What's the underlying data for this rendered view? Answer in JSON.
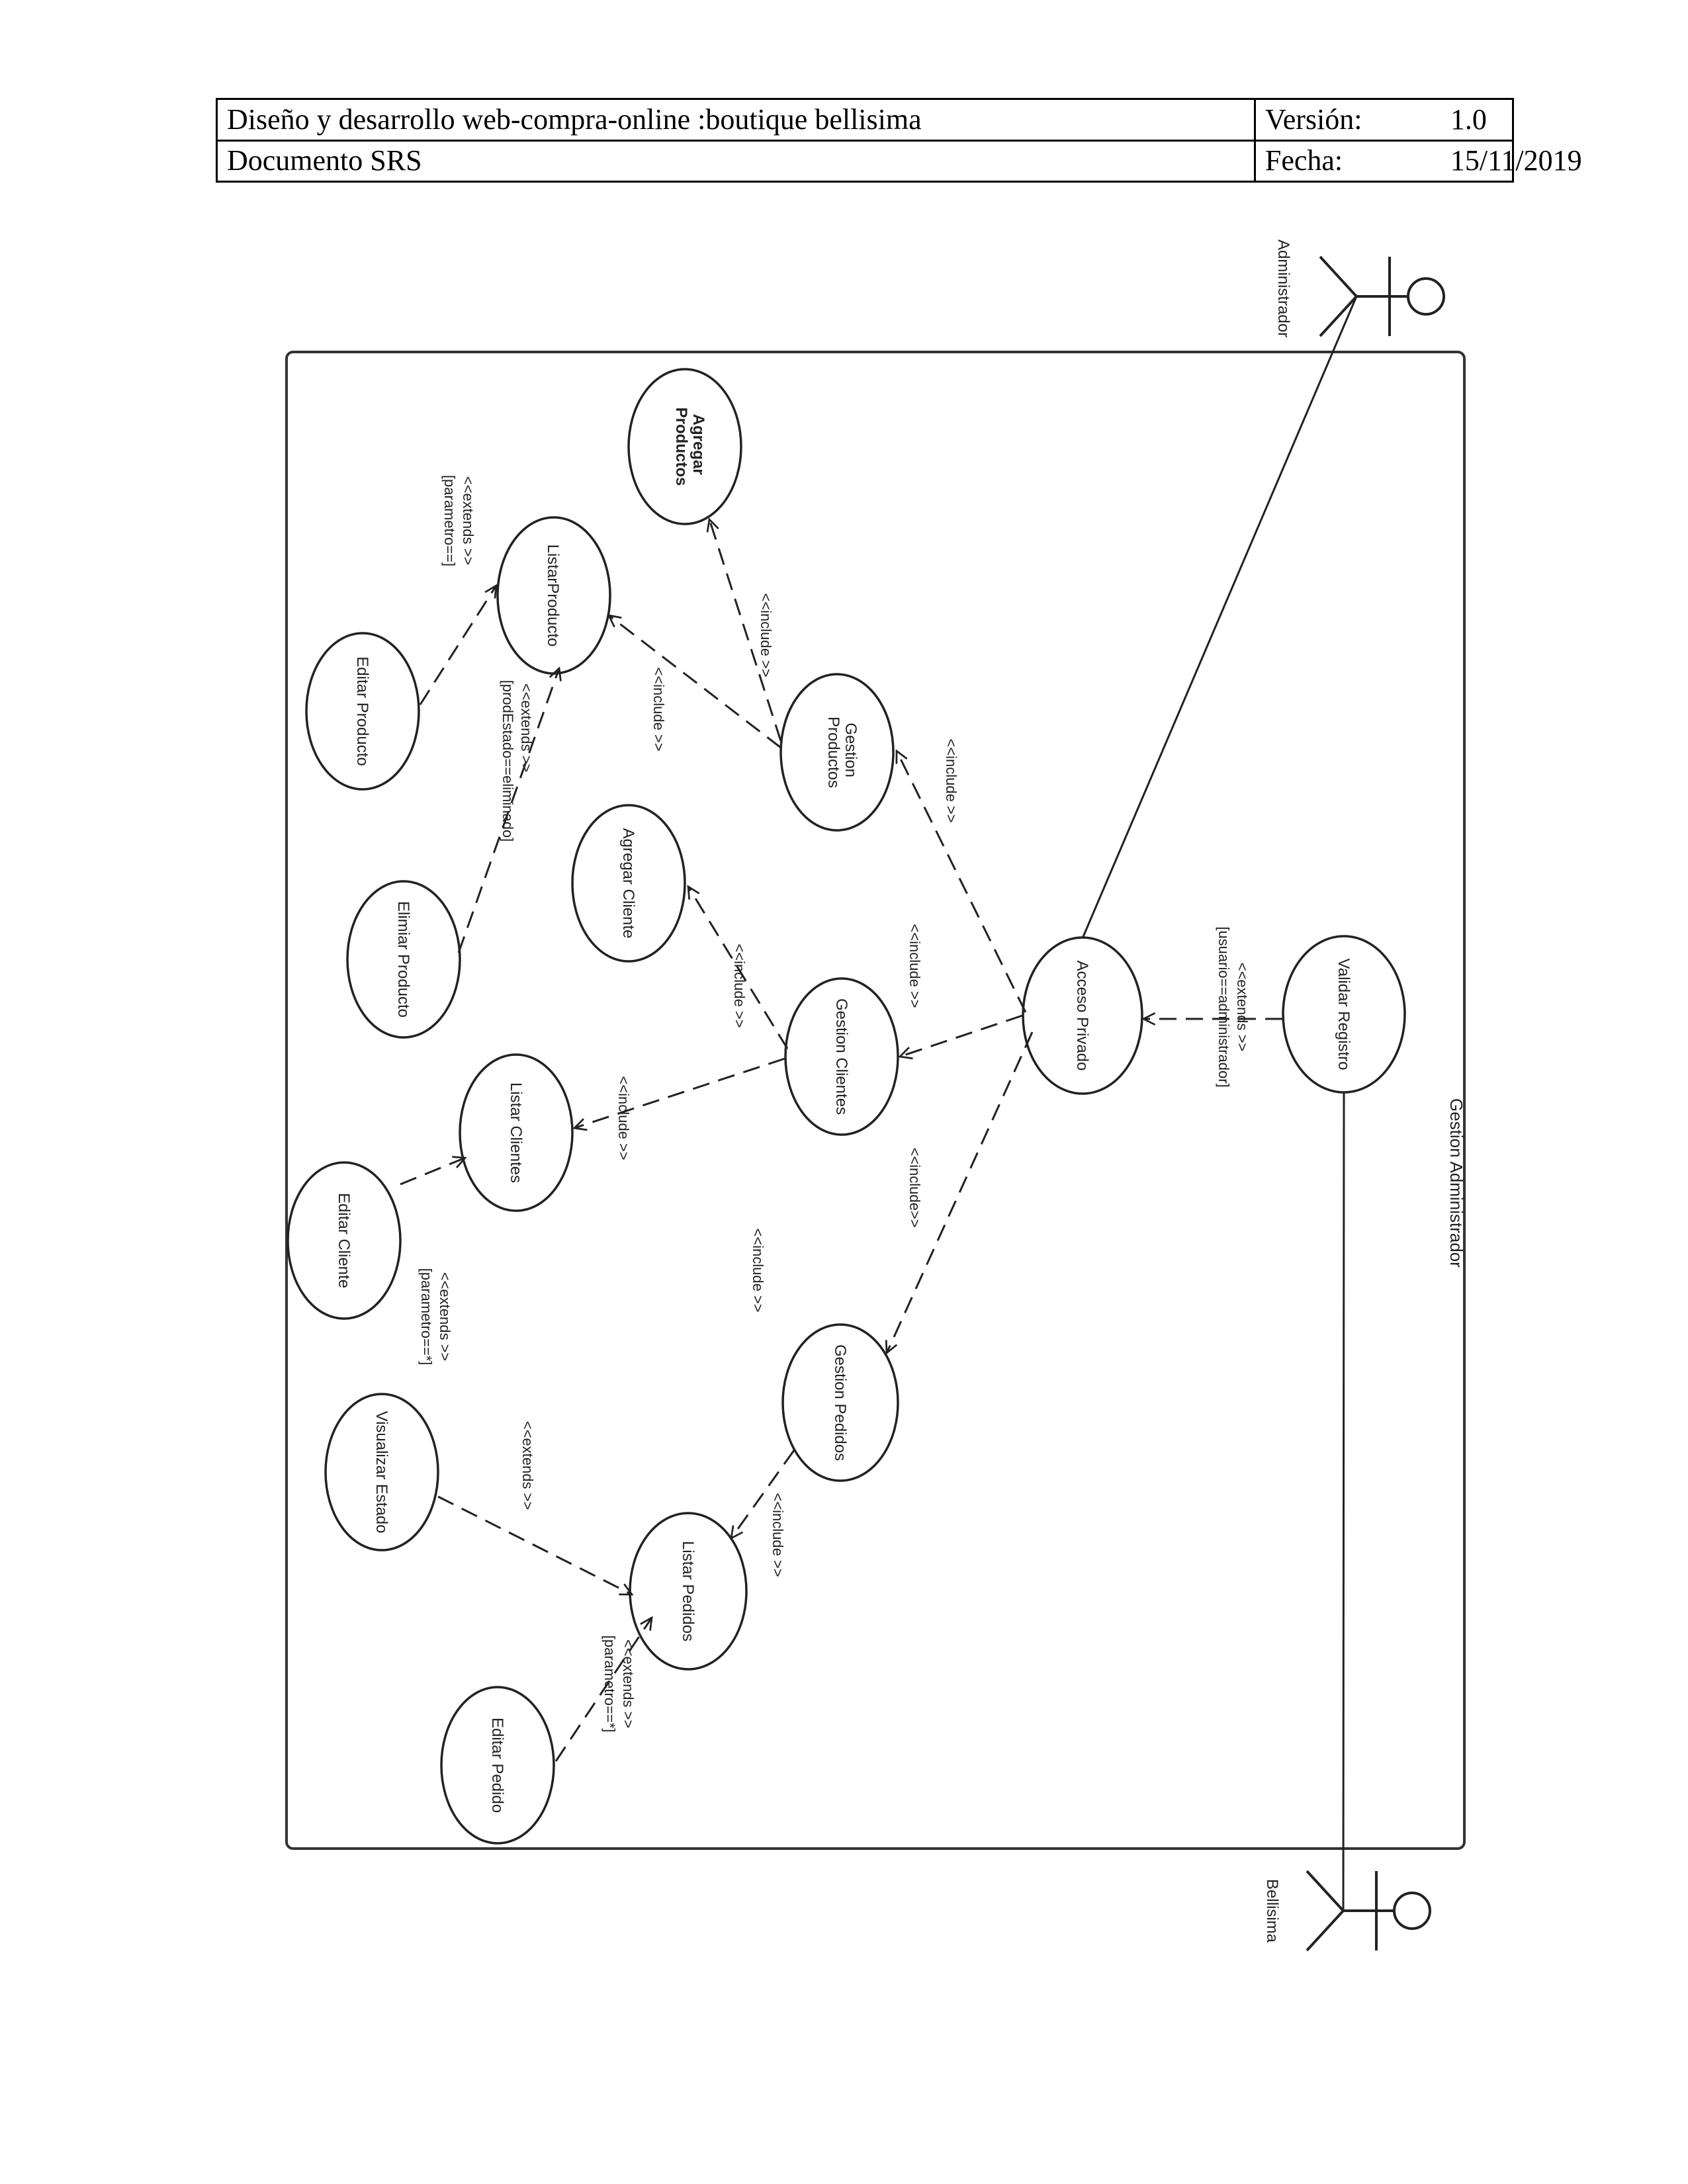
{
  "header": {
    "title": "Diseño y desarrollo web-compra-online :boutique bellisima",
    "subtitle": "Documento SRS",
    "version_label": "Versión:",
    "version_value": "1.0",
    "date_label": "Fecha:",
    "date_value": "15/11/2019"
  },
  "diagram": {
    "system_name": "Gestion Administrador",
    "actors": {
      "admin": "Administrador",
      "user": "Bellisima"
    },
    "use_cases": {
      "agregar_productos": [
        "Agregar",
        "Productos"
      ],
      "listar_producto": "ListarProducto",
      "editar_producto": "Editar Producto",
      "eliminar_producto": "Elimiar Producto",
      "gestion_productos": [
        "Gestion",
        "Productos"
      ],
      "agregar_cliente": "Agregar Cliente",
      "gestion_clientes": "Gestion Clientes",
      "listar_clientes": "Listar Clientes",
      "editar_cliente": "Editar  Cliente",
      "acceso_privado": "Acceso Privado",
      "validar_registro": "Validar Registro",
      "gestion_pedidos": "Gestion Pedidos",
      "listar_pedidos": "Listar Pedidos",
      "visualizar_estado": "Visualizar Estado",
      "editar_pedido": "Editar Pedido"
    },
    "labels": {
      "include": "<<include >>",
      "include_tight": "<<include>>",
      "extends": "<<extends >>",
      "cond_param_eq": "[parametro==]",
      "cond_param_star": "[parametro==*]",
      "cond_prod_estado": "[prodEstado==eliminado]",
      "cond_usuario": "[usuario==administrador]"
    }
  }
}
